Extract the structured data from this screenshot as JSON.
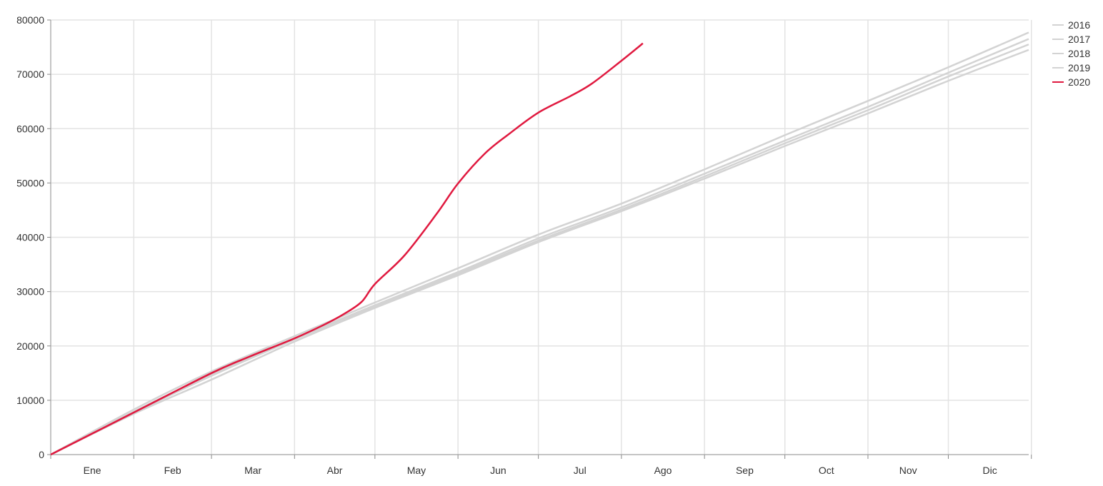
{
  "chart_data": {
    "type": "line",
    "title": "",
    "xlabel": "",
    "ylabel": "",
    "ylim": [
      0,
      80000
    ],
    "yticks": [
      0,
      10000,
      20000,
      30000,
      40000,
      50000,
      60000,
      70000,
      80000
    ],
    "xtick_labels": [
      "Ene",
      "Feb",
      "Mar",
      "Abr",
      "May",
      "Jun",
      "Jul",
      "Ago",
      "Sep",
      "Oct",
      "Nov",
      "Dic"
    ],
    "grid": true,
    "legend": "right",
    "series": [
      {
        "name": "2016",
        "color": "#d3d3d3",
        "x": [
          "01-01",
          "02-01",
          "03-01",
          "04-01",
          "05-01",
          "06-01",
          "07-01",
          "08-01",
          "09-01",
          "10-01",
          "11-01",
          "12-01",
          "12-31"
        ],
        "values": [
          0,
          8300,
          15300,
          21800,
          28000,
          34300,
          40500,
          46200,
          52500,
          58800,
          65100,
          71300,
          77700
        ]
      },
      {
        "name": "2017",
        "color": "#d3d3d3",
        "x": [
          "01-01",
          "02-01",
          "03-01",
          "04-01",
          "05-01",
          "06-01",
          "07-01",
          "08-01",
          "09-01",
          "10-01",
          "11-01",
          "12-01",
          "12-31"
        ],
        "values": [
          0,
          7900,
          14800,
          21400,
          27500,
          33600,
          39800,
          45500,
          51700,
          57800,
          64000,
          70300,
          76500
        ]
      },
      {
        "name": "2018",
        "color": "#d3d3d3",
        "x": [
          "01-01",
          "02-01",
          "03-01",
          "04-01",
          "05-01",
          "06-01",
          "07-01",
          "08-01",
          "09-01",
          "10-01",
          "11-01",
          "12-01",
          "12-31"
        ],
        "values": [
          0,
          7700,
          14500,
          21200,
          27300,
          33300,
          39400,
          45100,
          51200,
          57300,
          63400,
          69600,
          75500
        ]
      },
      {
        "name": "2019",
        "color": "#d3d3d3",
        "x": [
          "01-01",
          "02-01",
          "03-01",
          "04-01",
          "05-01",
          "06-01",
          "07-01",
          "08-01",
          "09-01",
          "10-01",
          "11-01",
          "12-01",
          "12-31"
        ],
        "values": [
          0,
          7500,
          13800,
          20800,
          27000,
          33000,
          39100,
          44800,
          50800,
          56800,
          62800,
          68800,
          74500
        ]
      },
      {
        "name": "2020",
        "color": "#e0193f",
        "x": [
          "01-01",
          "02-01",
          "03-01",
          "03-15",
          "04-01",
          "04-12",
          "04-19",
          "04-26",
          "05-01",
          "05-12",
          "05-24",
          "06-01",
          "06-11",
          "06-20",
          "07-01",
          "07-13",
          "07-21",
          "08-01",
          "08-09"
        ],
        "values": [
          0,
          7750,
          15000,
          18000,
          21400,
          23900,
          25750,
          28100,
          31400,
          36650,
          44300,
          49900,
          55400,
          59000,
          62950,
          66000,
          68300,
          72500,
          75700
        ]
      }
    ]
  }
}
